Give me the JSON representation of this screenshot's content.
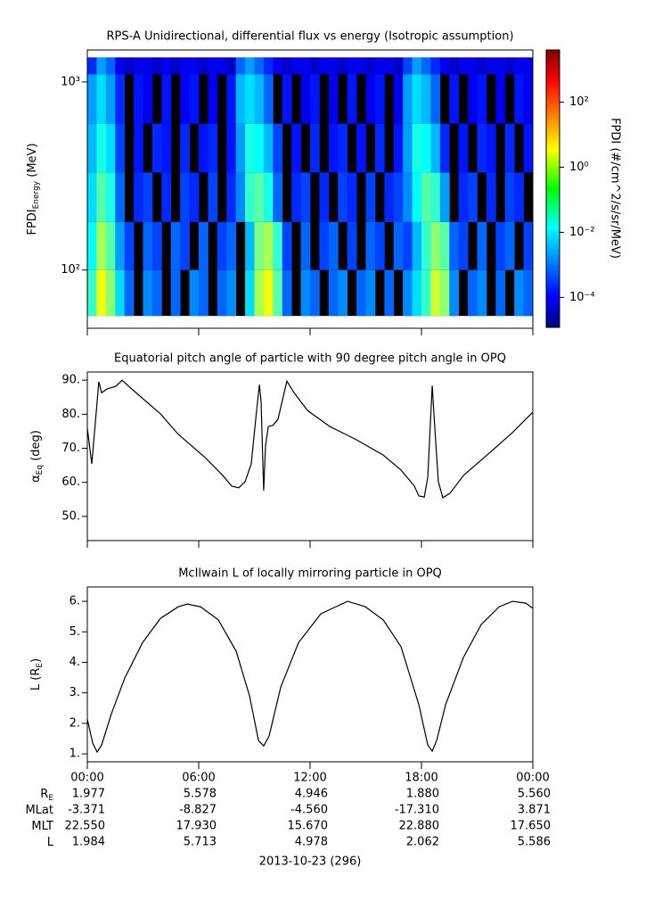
{
  "chart_data": [
    {
      "type": "heatmap",
      "title": "RPS-A Unidirectional, differential flux vs energy (Isotropic assumption)",
      "ylabel": {
        "text": "FPDI",
        "sub": "Energy",
        "after": " (MeV)"
      },
      "colorbar_label": "FPDI (#/cm^2/s/sr/MeV)",
      "xlim": [
        0,
        24
      ],
      "ylim": [
        49,
        1480
      ],
      "ylog": true,
      "yticks": [
        {
          "value": 100,
          "label": "10²"
        },
        {
          "value": 1000,
          "label": "10³"
        }
      ],
      "zlim": [
        1.2e-05,
        4000
      ],
      "zlog": true,
      "colormap": "jet",
      "zticks": [
        {
          "value": 0.0001,
          "label": "10⁻⁴"
        },
        {
          "value": 0.01,
          "label": "10⁻²"
        },
        {
          "value": 1,
          "label": "10⁰"
        },
        {
          "value": 100,
          "label": "10²"
        }
      ],
      "x_edges": [
        0,
        0.5,
        1,
        1.5,
        2,
        2.5,
        3,
        3.5,
        4,
        4.5,
        5,
        5.5,
        6,
        6.5,
        7,
        7.5,
        8,
        8.5,
        9,
        9.5,
        10,
        10.5,
        11,
        11.5,
        12,
        12.5,
        13,
        13.5,
        14,
        14.5,
        15,
        15.5,
        16,
        16.5,
        17,
        17.5,
        18,
        18.5,
        19,
        19.5,
        20,
        20.5,
        21,
        21.5,
        22,
        22.5,
        23,
        23.5,
        24
      ],
      "y_edges": [
        57,
        100,
        180,
        330,
        600,
        1100,
        1350
      ],
      "z": [
        [
          0.05,
          2,
          0.3,
          0.01,
          0.001,
          null,
          0.002,
          0.001,
          null,
          0.001,
          null,
          0.002,
          0.001,
          null,
          0.001,
          0.002,
          null,
          0.01,
          0.5,
          2,
          0.1,
          0.001,
          null,
          0.002,
          0.001,
          null,
          0.001,
          0.002,
          null,
          0.001,
          0.002,
          null,
          0.001,
          null,
          0.002,
          0.01,
          0.05,
          1,
          0.3,
          0.002,
          null,
          0.001,
          0.002,
          null,
          0.001,
          null,
          0.002,
          0.001
        ],
        [
          0.02,
          0.5,
          0.1,
          0.003,
          0.0005,
          null,
          0.001,
          0.0005,
          null,
          0.001,
          0.0005,
          null,
          0.001,
          null,
          0.0005,
          0.001,
          null,
          0.005,
          0.2,
          0.5,
          0.05,
          0.0005,
          null,
          0.001,
          null,
          0.0005,
          0.001,
          null,
          0.0005,
          null,
          0.001,
          0.0005,
          null,
          0.001,
          0.0005,
          0.005,
          0.05,
          0.3,
          0.1,
          0.001,
          0.0005,
          null,
          0.001,
          null,
          0.0005,
          0.001,
          null,
          0.0005
        ],
        [
          0.01,
          0.1,
          0.03,
          0.001,
          null,
          0.0003,
          0.0005,
          null,
          0.0003,
          null,
          0.0005,
          0.0003,
          null,
          0.0005,
          null,
          0.0003,
          0.002,
          0.05,
          0.1,
          0.03,
          0.001,
          null,
          0.0003,
          0.0005,
          null,
          0.0003,
          null,
          0.0005,
          0.0003,
          null,
          0.0005,
          null,
          0.0003,
          0.0005,
          0.002,
          0.02,
          0.1,
          0.05,
          0.003,
          null,
          0.0003,
          0.0005,
          null,
          0.0003,
          null,
          0.0005,
          0.0003,
          null
        ],
        [
          0.005,
          0.03,
          0.01,
          0.0005,
          null,
          0.0002,
          null,
          0.0003,
          0.0002,
          null,
          0.0003,
          null,
          0.0002,
          0.0003,
          null,
          0.0002,
          0.003,
          0.03,
          0.02,
          0.005,
          0.0005,
          null,
          0.0002,
          null,
          0.0003,
          null,
          0.0002,
          0.0003,
          null,
          0.0002,
          null,
          0.0003,
          null,
          0.0002,
          0.003,
          0.03,
          0.02,
          0.005,
          0.0003,
          null,
          0.0002,
          null,
          0.0003,
          0.0002,
          null,
          0.0003,
          null,
          0.0002
        ],
        [
          0.003,
          0.01,
          0.003,
          0.0003,
          null,
          0.0002,
          0.0001,
          null,
          0.0002,
          null,
          0.0001,
          0.0002,
          null,
          0.0001,
          null,
          0.0002,
          0.005,
          0.01,
          0.005,
          0.001,
          null,
          0.0002,
          null,
          0.0001,
          0.0002,
          null,
          0.0001,
          null,
          0.0002,
          null,
          0.0001,
          0.0002,
          null,
          0.0001,
          0.003,
          0.01,
          0.005,
          0.001,
          null,
          0.0002,
          null,
          0.0001,
          0.0002,
          null,
          0.0001,
          null,
          0.0002,
          0.0001
        ],
        [
          0.0003,
          0.003,
          0.001,
          0.0001,
          5e-05,
          0.0001,
          0.0001,
          5e-05,
          0.0001,
          5e-05,
          0.0001,
          0.0001,
          5e-05,
          0.0001,
          0.0001,
          5e-05,
          0.001,
          0.003,
          0.001,
          0.0003,
          0.0001,
          5e-05,
          0.0001,
          0.0001,
          5e-05,
          0.0001,
          0.0001,
          5e-05,
          0.0001,
          0.0001,
          5e-05,
          0.0001,
          0.0001,
          5e-05,
          0.0005,
          0.003,
          0.001,
          0.0003,
          0.0001,
          5e-05,
          0.0001,
          0.0001,
          5e-05,
          0.0001,
          0.0001,
          5e-05,
          0.0001,
          0.0001
        ]
      ]
    },
    {
      "type": "line",
      "title": "Equatorial pitch angle of particle with 90 degree pitch angle in OPQ",
      "ylabel": {
        "text": "α",
        "sub": "Eq",
        "after": " (deg)"
      },
      "xlim": [
        0,
        24
      ],
      "ylim": [
        42.9,
        92.4
      ],
      "yticks": [
        {
          "value": 50,
          "label": "50."
        },
        {
          "value": 60,
          "label": "60."
        },
        {
          "value": 70,
          "label": "70."
        },
        {
          "value": 80,
          "label": "80."
        },
        {
          "value": 90,
          "label": "90."
        }
      ],
      "color": "#000000",
      "x": [
        0,
        0.24,
        0.62,
        0.77,
        1.06,
        1.54,
        1.87,
        2.5,
        3.94,
        4.9,
        6.34,
        7.3,
        7.78,
        8.16,
        8.5,
        8.83,
        9.12,
        9.27,
        9.36,
        9.5,
        9.6,
        9.75,
        9.99,
        10.27,
        10.75,
        11.14,
        11.86,
        13.06,
        14.5,
        15.94,
        16.9,
        17.62,
        17.86,
        18.15,
        18.34,
        18.58,
        18.72,
        18.91,
        19.15,
        19.54,
        20.26,
        21.7,
        22.9,
        24
      ],
      "values": [
        75.9,
        65.4,
        89.5,
        86.3,
        87.4,
        88.2,
        90,
        86.9,
        80.1,
        74.1,
        67.3,
        62,
        58.9,
        58.4,
        60.2,
        65.4,
        81.1,
        88.7,
        83.7,
        57.6,
        70.7,
        76.4,
        76.7,
        78.5,
        89.7,
        86.3,
        81.1,
        76.4,
        72.5,
        68,
        63.6,
        58.9,
        56,
        55.7,
        61.5,
        88.4,
        75.9,
        60.2,
        55.5,
        56.8,
        62,
        68.8,
        74.6,
        80.6
      ]
    },
    {
      "type": "line",
      "title": "McIlwain L of locally mirroring particle in OPQ",
      "ylabel": {
        "text": "L (R",
        "sub": "E",
        "after": ")"
      },
      "xlim": [
        0,
        24
      ],
      "ylim": [
        0.74,
        6.47
      ],
      "yticks": [
        {
          "value": 1,
          "label": "1."
        },
        {
          "value": 2,
          "label": "2."
        },
        {
          "value": 3,
          "label": "3."
        },
        {
          "value": 4,
          "label": "4."
        },
        {
          "value": 5,
          "label": "5."
        },
        {
          "value": 6,
          "label": "6."
        }
      ],
      "xticks": [
        {
          "value": 0,
          "label": "00:00"
        },
        {
          "value": 6,
          "label": "06:00"
        },
        {
          "value": 12,
          "label": "12:00"
        },
        {
          "value": 18,
          "label": "18:00"
        },
        {
          "value": 24,
          "label": "00:00"
        }
      ],
      "color": "#000000",
      "x": [
        0,
        0.29,
        0.53,
        0.77,
        1.3,
        2.02,
        2.98,
        3.94,
        4.9,
        5.38,
        6.1,
        7.06,
        8.02,
        8.74,
        9.22,
        9.5,
        9.79,
        10.42,
        11.38,
        12.58,
        14.02,
        14.98,
        15.94,
        16.9,
        17.86,
        18.34,
        18.58,
        18.82,
        19.3,
        20.26,
        21.22,
        22.18,
        22.9,
        23.62,
        24
      ],
      "values": [
        2.14,
        1.35,
        1.06,
        1.29,
        2.32,
        3.49,
        4.65,
        5.44,
        5.82,
        5.91,
        5.82,
        5.39,
        4.36,
        2.9,
        1.44,
        1.26,
        1.58,
        3.19,
        4.65,
        5.59,
        6.0,
        5.82,
        5.39,
        4.51,
        2.61,
        1.29,
        1.09,
        1.44,
        2.61,
        4.16,
        5.24,
        5.82,
        6.0,
        5.94,
        5.77
      ],
      "ephemeris": [
        {
          "label": "R",
          "label_sub": "E",
          "values": [
            "1.977",
            "5.578",
            "4.946",
            "1.880",
            "5.560"
          ]
        },
        {
          "label": "MLat",
          "values": [
            "-3.371",
            "-8.827",
            "-4.560",
            "-17.310",
            "3.871"
          ]
        },
        {
          "label": "MLT",
          "values": [
            "22.550",
            "17.930",
            "15.670",
            "22.880",
            "17.650"
          ]
        },
        {
          "label": "L",
          "values": [
            "1.984",
            "5.713",
            "4.978",
            "2.062",
            "5.586"
          ]
        }
      ],
      "xlabel": "2013-10-23 (296)"
    }
  ]
}
